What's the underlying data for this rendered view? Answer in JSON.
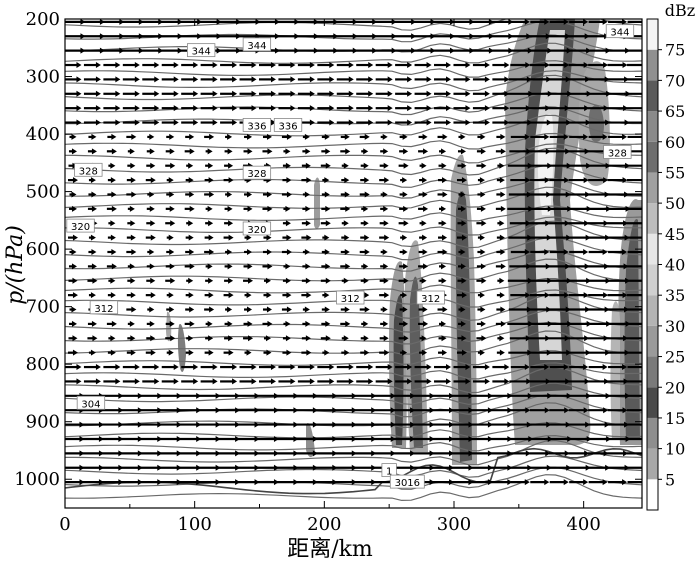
{
  "chart_data": {
    "type": "heatmap",
    "xlabel": "距离/km",
    "ylabel": "p/(hPa)",
    "xlim": [
      0,
      445
    ],
    "ylim": [
      1050,
      200
    ],
    "x_ticks": [
      "0",
      "100",
      "200",
      "300",
      "400"
    ],
    "y_ticks": [
      "200",
      "300",
      "400",
      "500",
      "600",
      "700",
      "800",
      "900",
      "1000"
    ],
    "colorbar": {
      "unit": "dBz",
      "levels": [
        "5",
        "10",
        "15",
        "20",
        "25",
        "30",
        "35",
        "40",
        "45",
        "50",
        "55",
        "60",
        "65",
        "70",
        "75"
      ],
      "colors": [
        "#ffffff",
        "#a8a8a8",
        "#8e8e8e",
        "#4a4a4a",
        "#7a7a7a",
        "#9a9a9a",
        "#b4b4b4",
        "#d0d0d0",
        "#e6e6e6",
        "#bdbdbd",
        "#a0a0a0",
        "#6e6e6e",
        "#8a8a8a",
        "#5a5a5a",
        "#909090",
        "#f4f4f4"
      ]
    },
    "contour_labels": [
      {
        "text": "344",
        "x": 105,
        "p": 255
      },
      {
        "text": "344",
        "x": 148,
        "p": 245
      },
      {
        "text": "344",
        "x": 428,
        "p": 222
      },
      {
        "text": "336",
        "x": 148,
        "p": 385
      },
      {
        "text": "336",
        "x": 172,
        "p": 385
      },
      {
        "text": "328",
        "x": 18,
        "p": 463
      },
      {
        "text": "328",
        "x": 148,
        "p": 468
      },
      {
        "text": "328",
        "x": 426,
        "p": 432
      },
      {
        "text": "320",
        "x": 12,
        "p": 560
      },
      {
        "text": "320",
        "x": 148,
        "p": 565
      },
      {
        "text": "312",
        "x": 30,
        "p": 702
      },
      {
        "text": "312",
        "x": 220,
        "p": 685
      },
      {
        "text": "312",
        "x": 282,
        "p": 685
      },
      {
        "text": "304",
        "x": 20,
        "p": 868
      },
      {
        "text": "1",
        "x": 250,
        "p": 985
      },
      {
        "text": "3016",
        "x": 264,
        "p": 1005
      }
    ],
    "reflectivity_cells": [
      {
        "x_center": 92,
        "p_top": 740,
        "p_bottom": 815,
        "max_dbz": 30
      },
      {
        "x_center": 195,
        "p_top": 465,
        "p_bottom": 575,
        "max_dbz": 25
      },
      {
        "x_center": 192,
        "p_top": 905,
        "p_bottom": 990,
        "max_dbz": 25
      },
      {
        "x_center": 258,
        "p_top": 620,
        "p_bottom": 975,
        "max_dbz": 40
      },
      {
        "x_center": 270,
        "p_top": 585,
        "p_bottom": 980,
        "max_dbz": 40
      },
      {
        "x_center": 305,
        "p_top": 435,
        "p_bottom": 1010,
        "max_dbz": 45
      },
      {
        "x_center": 375,
        "p_top": 200,
        "p_bottom": 1000,
        "max_dbz": 75
      },
      {
        "x_center": 412,
        "p_top": 295,
        "p_bottom": 510,
        "max_dbz": 35
      },
      {
        "x_center": 432,
        "p_top": 520,
        "p_bottom": 985,
        "max_dbz": 40
      }
    ]
  }
}
